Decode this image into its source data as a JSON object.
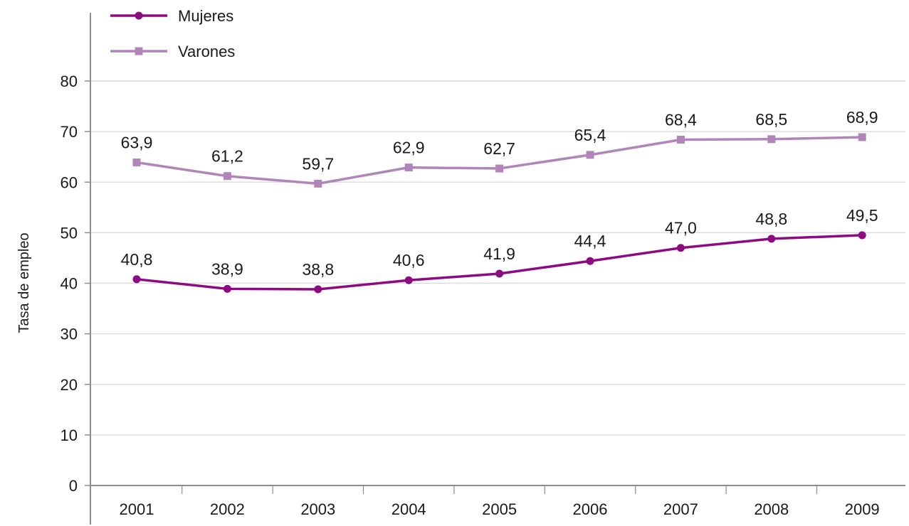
{
  "chart_data": {
    "type": "line",
    "title": "",
    "xlabel": "",
    "ylabel": "Tasa de empleo",
    "ylim": [
      0,
      80
    ],
    "yticks": [
      0,
      10,
      20,
      30,
      40,
      50,
      60,
      70,
      80
    ],
    "grid": true,
    "legend_position": "top-left",
    "categories": [
      "2001",
      "2002",
      "2003",
      "2004",
      "2005",
      "2006",
      "2007",
      "2008",
      "2009"
    ],
    "series": [
      {
        "name": "Mujeres",
        "color": "#8e0a82",
        "marker": "circle",
        "values": [
          40.8,
          38.9,
          38.8,
          40.6,
          41.9,
          44.4,
          47.0,
          48.8,
          49.5
        ],
        "labels": [
          "40,8",
          "38,9",
          "38,8",
          "40,6",
          "41,9",
          "44,4",
          "47,0",
          "48,8",
          "49,5"
        ]
      },
      {
        "name": "Varones",
        "color": "#b185b9",
        "marker": "square",
        "values": [
          63.9,
          61.2,
          59.7,
          62.9,
          62.7,
          65.4,
          68.4,
          68.5,
          68.9
        ],
        "labels": [
          "63,9",
          "61,2",
          "59,7",
          "62,9",
          "62,7",
          "65,4",
          "68,4",
          "68,5",
          "68,9"
        ]
      }
    ]
  }
}
